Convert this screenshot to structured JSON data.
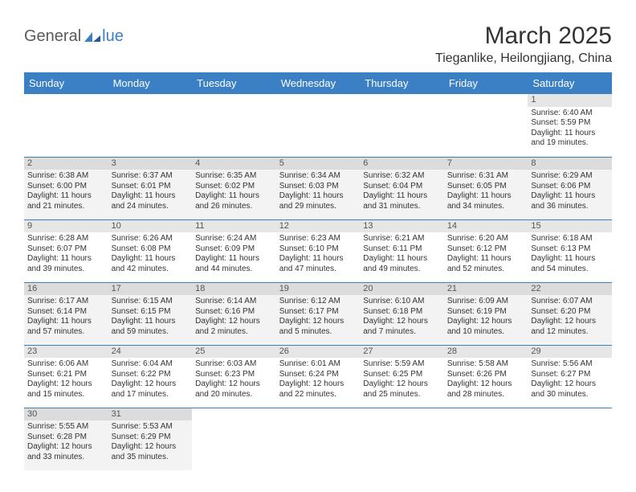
{
  "logo": {
    "text1": "General",
    "text2": "lue"
  },
  "title": "March 2025",
  "location": "Tieganlike, Heilongjiang, China",
  "colors": {
    "header_bg": "#3b7fc4",
    "header_fg": "#ffffff",
    "daynum_bg": "#e6e6e6",
    "row_alt_bg": "#f3f3f3",
    "text": "#333333",
    "border": "#3b7fc4"
  },
  "day_headers": [
    "Sunday",
    "Monday",
    "Tuesday",
    "Wednesday",
    "Thursday",
    "Friday",
    "Saturday"
  ],
  "weeks": [
    [
      null,
      null,
      null,
      null,
      null,
      null,
      {
        "n": "1",
        "sr": "6:40 AM",
        "ss": "5:59 PM",
        "dl": "11 hours and 19 minutes."
      }
    ],
    [
      {
        "n": "2",
        "sr": "6:38 AM",
        "ss": "6:00 PM",
        "dl": "11 hours and 21 minutes."
      },
      {
        "n": "3",
        "sr": "6:37 AM",
        "ss": "6:01 PM",
        "dl": "11 hours and 24 minutes."
      },
      {
        "n": "4",
        "sr": "6:35 AM",
        "ss": "6:02 PM",
        "dl": "11 hours and 26 minutes."
      },
      {
        "n": "5",
        "sr": "6:34 AM",
        "ss": "6:03 PM",
        "dl": "11 hours and 29 minutes."
      },
      {
        "n": "6",
        "sr": "6:32 AM",
        "ss": "6:04 PM",
        "dl": "11 hours and 31 minutes."
      },
      {
        "n": "7",
        "sr": "6:31 AM",
        "ss": "6:05 PM",
        "dl": "11 hours and 34 minutes."
      },
      {
        "n": "8",
        "sr": "6:29 AM",
        "ss": "6:06 PM",
        "dl": "11 hours and 36 minutes."
      }
    ],
    [
      {
        "n": "9",
        "sr": "6:28 AM",
        "ss": "6:07 PM",
        "dl": "11 hours and 39 minutes."
      },
      {
        "n": "10",
        "sr": "6:26 AM",
        "ss": "6:08 PM",
        "dl": "11 hours and 42 minutes."
      },
      {
        "n": "11",
        "sr": "6:24 AM",
        "ss": "6:09 PM",
        "dl": "11 hours and 44 minutes."
      },
      {
        "n": "12",
        "sr": "6:23 AM",
        "ss": "6:10 PM",
        "dl": "11 hours and 47 minutes."
      },
      {
        "n": "13",
        "sr": "6:21 AM",
        "ss": "6:11 PM",
        "dl": "11 hours and 49 minutes."
      },
      {
        "n": "14",
        "sr": "6:20 AM",
        "ss": "6:12 PM",
        "dl": "11 hours and 52 minutes."
      },
      {
        "n": "15",
        "sr": "6:18 AM",
        "ss": "6:13 PM",
        "dl": "11 hours and 54 minutes."
      }
    ],
    [
      {
        "n": "16",
        "sr": "6:17 AM",
        "ss": "6:14 PM",
        "dl": "11 hours and 57 minutes."
      },
      {
        "n": "17",
        "sr": "6:15 AM",
        "ss": "6:15 PM",
        "dl": "11 hours and 59 minutes."
      },
      {
        "n": "18",
        "sr": "6:14 AM",
        "ss": "6:16 PM",
        "dl": "12 hours and 2 minutes."
      },
      {
        "n": "19",
        "sr": "6:12 AM",
        "ss": "6:17 PM",
        "dl": "12 hours and 5 minutes."
      },
      {
        "n": "20",
        "sr": "6:10 AM",
        "ss": "6:18 PM",
        "dl": "12 hours and 7 minutes."
      },
      {
        "n": "21",
        "sr": "6:09 AM",
        "ss": "6:19 PM",
        "dl": "12 hours and 10 minutes."
      },
      {
        "n": "22",
        "sr": "6:07 AM",
        "ss": "6:20 PM",
        "dl": "12 hours and 12 minutes."
      }
    ],
    [
      {
        "n": "23",
        "sr": "6:06 AM",
        "ss": "6:21 PM",
        "dl": "12 hours and 15 minutes."
      },
      {
        "n": "24",
        "sr": "6:04 AM",
        "ss": "6:22 PM",
        "dl": "12 hours and 17 minutes."
      },
      {
        "n": "25",
        "sr": "6:03 AM",
        "ss": "6:23 PM",
        "dl": "12 hours and 20 minutes."
      },
      {
        "n": "26",
        "sr": "6:01 AM",
        "ss": "6:24 PM",
        "dl": "12 hours and 22 minutes."
      },
      {
        "n": "27",
        "sr": "5:59 AM",
        "ss": "6:25 PM",
        "dl": "12 hours and 25 minutes."
      },
      {
        "n": "28",
        "sr": "5:58 AM",
        "ss": "6:26 PM",
        "dl": "12 hours and 28 minutes."
      },
      {
        "n": "29",
        "sr": "5:56 AM",
        "ss": "6:27 PM",
        "dl": "12 hours and 30 minutes."
      }
    ],
    [
      {
        "n": "30",
        "sr": "5:55 AM",
        "ss": "6:28 PM",
        "dl": "12 hours and 33 minutes."
      },
      {
        "n": "31",
        "sr": "5:53 AM",
        "ss": "6:29 PM",
        "dl": "12 hours and 35 minutes."
      },
      null,
      null,
      null,
      null,
      null
    ]
  ],
  "labels": {
    "sunrise": "Sunrise: ",
    "sunset": "Sunset: ",
    "daylight": "Daylight: "
  }
}
